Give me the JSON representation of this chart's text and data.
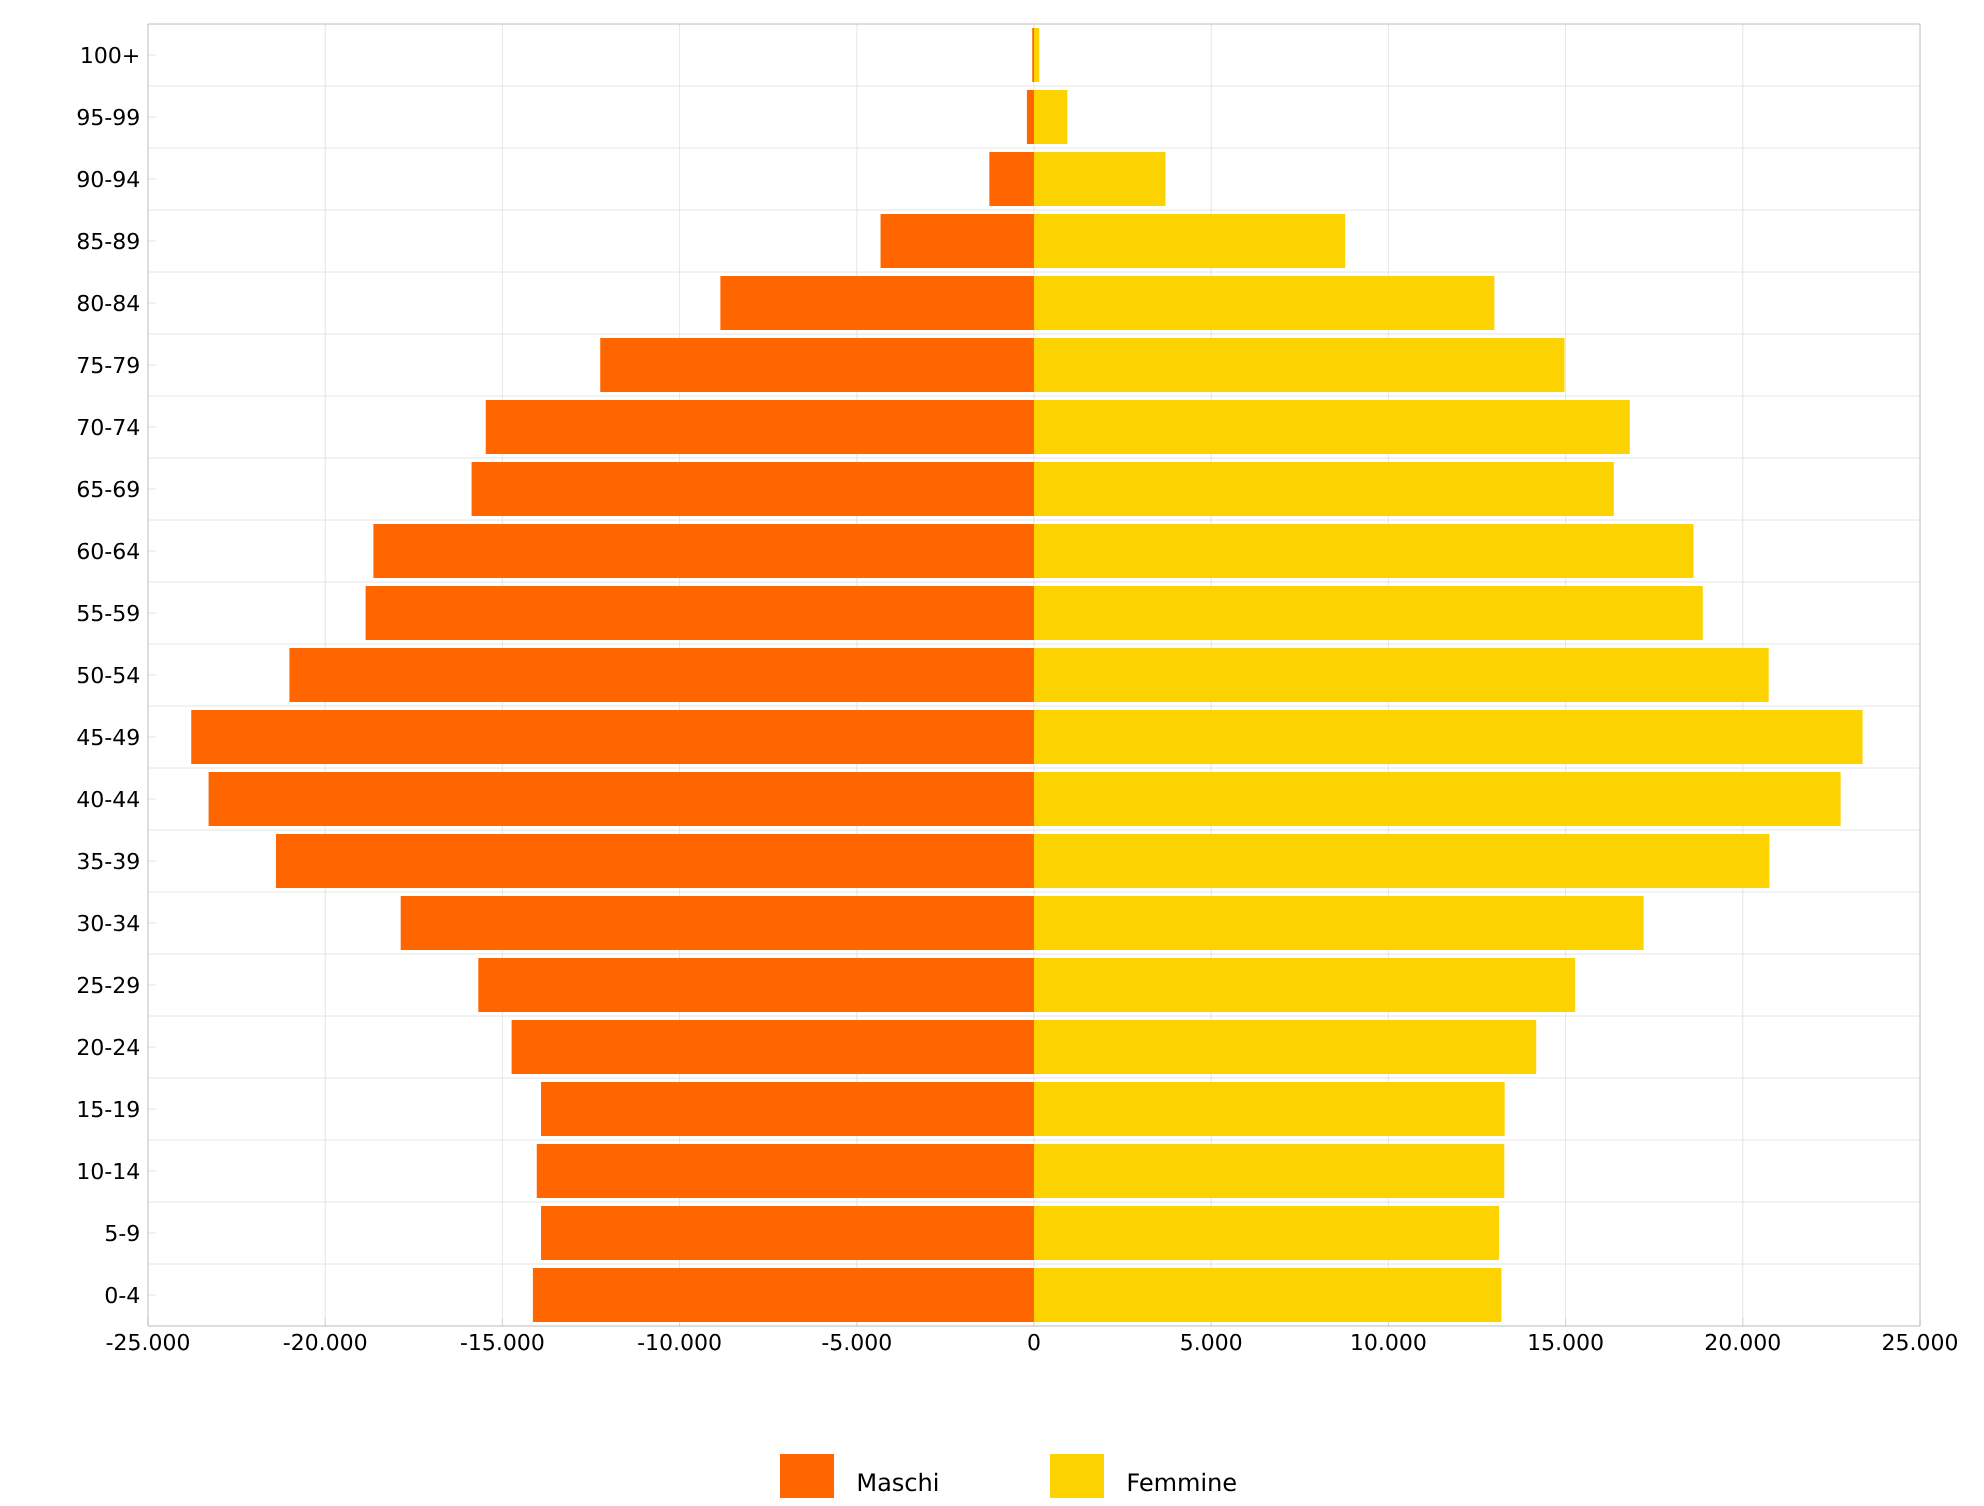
{
  "chart_data": {
    "type": "bar",
    "orientation": "horizontal",
    "categories": [
      "100+",
      "95-99",
      "90-94",
      "85-89",
      "80-84",
      "75-79",
      "70-74",
      "65-69",
      "60-64",
      "55-59",
      "50-54",
      "45-49",
      "40-44",
      "35-39",
      "30-34",
      "25-29",
      "20-24",
      "15-19",
      "10-14",
      "5-9",
      "0-4"
    ],
    "series": [
      {
        "name": "Maschi",
        "color": "#ff6600",
        "values": [
          -50,
          -200,
          -1260,
          -4330,
          -8850,
          -12240,
          -15470,
          -15870,
          -18640,
          -18860,
          -21010,
          -23780,
          -23290,
          -21390,
          -17870,
          -15680,
          -14740,
          -13910,
          -14030,
          -13910,
          -14140
        ]
      },
      {
        "name": "Femmine",
        "color": "#fcd200",
        "values": [
          150,
          940,
          3710,
          8780,
          12990,
          14970,
          16810,
          16360,
          18610,
          18870,
          20730,
          23380,
          22760,
          20750,
          17200,
          15270,
          14170,
          13280,
          13270,
          13120,
          13190
        ]
      }
    ],
    "xlim": [
      -25000,
      25000
    ],
    "xticks": [
      {
        "value": -25000,
        "label": "-25.000"
      },
      {
        "value": -20000,
        "label": "-20.000"
      },
      {
        "value": -15000,
        "label": "-15.000"
      },
      {
        "value": -10000,
        "label": "-10.000"
      },
      {
        "value": -5000,
        "label": "-5.000"
      },
      0,
      {
        "value": 5000,
        "label": "5.000"
      },
      {
        "value": 10000,
        "label": "10.000"
      },
      {
        "value": 15000,
        "label": "15.000"
      },
      {
        "value": 20000,
        "label": "20.000"
      },
      {
        "value": 25000,
        "label": "25.000"
      }
    ],
    "grid": true,
    "legend": "bottom",
    "stacked": true
  }
}
